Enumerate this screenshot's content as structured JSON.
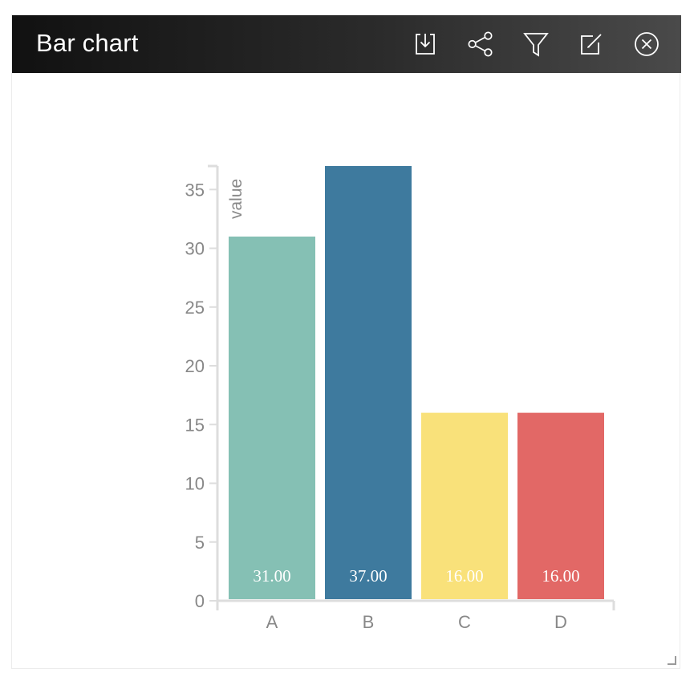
{
  "window": {
    "title": "Bar chart"
  },
  "toolbar": {
    "items": [
      {
        "name": "download-icon",
        "icon": "download"
      },
      {
        "name": "share-icon",
        "icon": "share"
      },
      {
        "name": "filter-icon",
        "icon": "filter"
      },
      {
        "name": "edit-icon",
        "icon": "edit"
      },
      {
        "name": "close-icon",
        "icon": "close"
      }
    ]
  },
  "chart_data": {
    "type": "bar",
    "title": "",
    "xlabel": "",
    "ylabel": "value",
    "categories": [
      "A",
      "B",
      "C",
      "D"
    ],
    "values": [
      31,
      37,
      16,
      16
    ],
    "value_labels": [
      "31.00",
      "37.00",
      "16.00",
      "16.00"
    ],
    "colors": [
      "#85c0b4",
      "#3e7a9e",
      "#f9e17a",
      "#e26866"
    ],
    "ylim": [
      0,
      37
    ],
    "yticks": [
      0,
      5,
      10,
      15,
      20,
      25,
      30,
      35
    ],
    "grid": false,
    "legend": "none"
  }
}
